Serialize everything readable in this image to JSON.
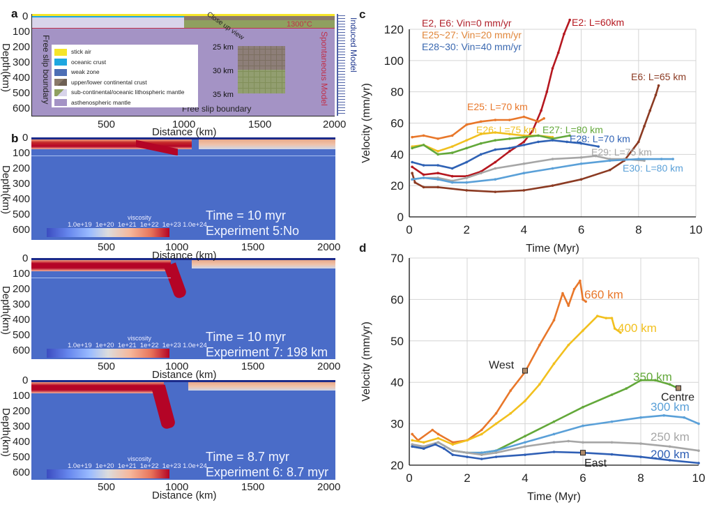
{
  "panel_a": {
    "label": "a",
    "y_ticks": [
      "0",
      "100",
      "200",
      "300",
      "400",
      "500",
      "600"
    ],
    "x_ticks": [
      "500",
      "1000",
      "1500",
      "2000"
    ],
    "ylabel": "Depth(km)",
    "xlabel": "Distance (km)",
    "left_boundary": "Free slip boundary",
    "bottom_boundary": "Free slip boundary",
    "isotherm": "1300°C",
    "spontaneous": "Spontaneous Model",
    "induced": "Induced Model",
    "closeup": "Close up view",
    "closeup_depths": [
      "25 km",
      "30 km",
      "35 km"
    ],
    "legend": [
      {
        "label": "stick air",
        "color": "#f5e52a"
      },
      {
        "label": "oceanic crust",
        "color": "#1ea7e0"
      },
      {
        "label": "weak zone",
        "color": "#4d6fb5"
      },
      {
        "label": "upper/lower continental crust",
        "color": "#8a7a6a"
      },
      {
        "label": "sub-continental/oceanic lithospheric mantle",
        "color": "#8fa060"
      },
      {
        "label": "asthenospheric mantle",
        "color": "#a493c5"
      }
    ]
  },
  "panel_b": {
    "label": "b",
    "ylabel": "Depth(km)",
    "xlabel": "Distance (km)",
    "y_ticks": [
      "0",
      "100",
      "200",
      "300",
      "400",
      "500",
      "600"
    ],
    "x_ticks": [
      "500",
      "1000",
      "1500",
      "2000"
    ],
    "colorbar_title": "viscosity",
    "colorbar_ticks": [
      "1.0e+19",
      "1e+20",
      "1e+21",
      "1e+22",
      "1e+23",
      "1.0e+24"
    ],
    "snapshots": [
      {
        "time": "Time = 10 myr",
        "experiment": "Experiment 5:No"
      },
      {
        "time": "Time = 10 myr",
        "experiment": "Experiment 7: 198 km"
      },
      {
        "time": "Time = 8.7 myr",
        "experiment": "Experiment 6: 8.7 myr"
      }
    ]
  },
  "chart_data": [
    {
      "panel": "c",
      "type": "line",
      "xlabel": "Time (Myr)",
      "ylabel": "Velocity (mm/yr)",
      "xlim": [
        0,
        10
      ],
      "ylim": [
        0,
        130
      ],
      "x_ticks": [
        0,
        2,
        4,
        6,
        8,
        10
      ],
      "y_ticks": [
        0,
        20,
        40,
        60,
        80,
        100,
        120
      ],
      "grid": true,
      "notes": [
        {
          "text": "E2, E6:   Vin=0 mm/yr",
          "color": "#b0202a"
        },
        {
          "text": "E25~27: Vin=20 mm/yr",
          "color": "#e0863a"
        },
        {
          "text": "E28~30: Vin=40 mm/yr",
          "color": "#3a68b0"
        }
      ],
      "series": [
        {
          "name": "E2: L=60km",
          "color": "#b5171f",
          "x": [
            0.1,
            0.5,
            1,
            1.5,
            2,
            2.5,
            3,
            3.5,
            4,
            4.3,
            4.6,
            4.8,
            5.0,
            5.2,
            5.4,
            5.6
          ],
          "y": [
            32,
            27,
            28,
            26,
            26,
            29,
            35,
            42,
            48,
            55,
            68,
            80,
            95,
            105,
            117,
            126
          ]
        },
        {
          "name": "E6: L=65 km",
          "color": "#8b3a22",
          "x": [
            0.1,
            0.2,
            0.5,
            1,
            2,
            3,
            4,
            5,
            6,
            7,
            7.5,
            8,
            8.2,
            8.4,
            8.6,
            8.7
          ],
          "y": [
            28,
            22,
            19,
            19,
            17,
            16,
            17,
            20,
            24,
            30,
            36,
            48,
            58,
            68,
            78,
            84
          ]
        },
        {
          "name": "E25: L=70 km",
          "color": "#e8772a",
          "x": [
            0.1,
            0.5,
            1,
            1.5,
            2,
            2.5,
            3,
            3.5,
            4,
            4.5,
            4.7
          ],
          "y": [
            51,
            52,
            50,
            52,
            59,
            61,
            62,
            62,
            64,
            61,
            63
          ]
        },
        {
          "name": "E26: L=75 km",
          "color": "#f0c020",
          "x": [
            0.1,
            0.5,
            1,
            1.5,
            2,
            2.5,
            3,
            3.5,
            4,
            4.5,
            5
          ],
          "y": [
            45,
            46,
            42,
            45,
            49,
            53,
            54,
            53,
            52,
            52,
            51
          ]
        },
        {
          "name": "E27: L=80 km",
          "color": "#63a83a",
          "x": [
            0.1,
            0.5,
            1,
            1.5,
            2,
            2.5,
            3,
            3.5,
            4,
            4.5,
            5,
            5.6
          ],
          "y": [
            44,
            46,
            40,
            41,
            44,
            47,
            49,
            50,
            51,
            52,
            50,
            52
          ]
        },
        {
          "name": "E28: L=70 km",
          "color": "#2f62b5",
          "x": [
            0.1,
            0.5,
            1,
            1.5,
            2,
            2.5,
            3,
            3.5,
            4,
            4.5,
            5,
            5.5,
            6,
            6.6
          ],
          "y": [
            35,
            33,
            33,
            31,
            35,
            40,
            43,
            44,
            46,
            48,
            49,
            48,
            47,
            45
          ]
        },
        {
          "name": "E29: L=75 km",
          "color": "#a6a6a6",
          "x": [
            0.1,
            0.5,
            1,
            1.5,
            2,
            2.5,
            3,
            4,
            5,
            6,
            6.5,
            7,
            7.5,
            8.2
          ],
          "y": [
            24,
            25,
            25,
            23,
            25,
            28,
            31,
            34,
            37,
            38,
            39,
            37,
            37,
            36
          ]
        },
        {
          "name": "E30: L=80 km",
          "color": "#5aa0d8",
          "x": [
            0.1,
            0.5,
            1,
            1.5,
            2,
            3,
            4,
            5,
            6,
            7,
            8,
            8.8,
            9.2
          ],
          "y": [
            24,
            25,
            24,
            22,
            22,
            24,
            28,
            31,
            34,
            36,
            37,
            37,
            37
          ]
        }
      ]
    },
    {
      "panel": "d",
      "type": "line",
      "xlabel": "Time (Myr)",
      "ylabel": "Velocity (mm/yr)",
      "xlim": [
        0,
        10
      ],
      "ylim": [
        20,
        70
      ],
      "x_ticks": [
        0,
        2,
        4,
        6,
        8,
        10
      ],
      "y_ticks": [
        20,
        30,
        40,
        50,
        60,
        70
      ],
      "grid": true,
      "series": [
        {
          "name": "660 km",
          "color": "#e8772a",
          "x": [
            0.1,
            0.3,
            0.8,
            1.0,
            1.5,
            2,
            2.5,
            3,
            3.5,
            4,
            4.5,
            5,
            5.3,
            5.5,
            5.7,
            5.9,
            6,
            6.1
          ],
          "y": [
            27.5,
            26,
            28.5,
            27.5,
            25.5,
            26,
            28.5,
            32.5,
            38,
            42.5,
            49,
            55,
            61.5,
            58.5,
            62.5,
            64.5,
            60,
            59.5
          ]
        },
        {
          "name": "400 km",
          "color": "#f2c01e",
          "x": [
            0.1,
            0.5,
            1,
            1.5,
            2,
            2.5,
            3,
            3.5,
            4,
            4.5,
            5,
            5.5,
            6,
            6.5,
            6.8,
            7,
            7.1,
            7.3
          ],
          "y": [
            26,
            25.5,
            26.5,
            25,
            26,
            27.5,
            30,
            32.5,
            35.5,
            39.5,
            44.5,
            49,
            52.5,
            56,
            55.5,
            55.5,
            53,
            52
          ]
        },
        {
          "name": "350 km",
          "color": "#63a83a",
          "x": [
            0.1,
            0.5,
            1,
            1.5,
            2,
            2.5,
            3,
            4,
            5,
            6,
            7,
            7.5,
            8,
            8.5,
            9,
            9.3
          ],
          "y": [
            24.5,
            24,
            25.5,
            23.5,
            23,
            23,
            23.5,
            27,
            30.5,
            34,
            37,
            38.5,
            40.5,
            40.5,
            39.5,
            38.5
          ]
        },
        {
          "name": "300 km",
          "color": "#5aa0d8",
          "x": [
            0.1,
            0.5,
            1,
            1.5,
            2,
            2.5,
            3,
            4,
            5,
            6,
            7,
            8,
            8.8,
            9.5,
            10
          ],
          "y": [
            25,
            24.5,
            25.5,
            23.5,
            23,
            23,
            23.5,
            25.5,
            27.5,
            29.5,
            30.5,
            31.5,
            32,
            31.5,
            30
          ]
        },
        {
          "name": "250 km",
          "color": "#a6a6a6",
          "x": [
            0.1,
            0.5,
            1,
            1.5,
            2,
            2.5,
            3,
            4,
            5,
            5.5,
            6,
            7,
            8,
            9,
            10
          ],
          "y": [
            25,
            24.5,
            25.5,
            23.5,
            23,
            22.5,
            23,
            24.5,
            25.5,
            25.8,
            25.5,
            25.5,
            25.2,
            24.5,
            23.5
          ]
        },
        {
          "name": "200 km",
          "color": "#2f5fb5",
          "x": [
            0.1,
            0.5,
            0.9,
            1.2,
            1.5,
            2,
            2.5,
            3,
            4,
            5,
            6,
            7,
            8,
            9,
            10
          ],
          "y": [
            24.5,
            24,
            25,
            24,
            22.5,
            22,
            21.5,
            22,
            22.5,
            23.2,
            23,
            22.6,
            22,
            21.2,
            20.5
          ]
        }
      ],
      "markers": [
        {
          "label": "West",
          "x": 4.0,
          "y": 42.8
        },
        {
          "label": "Centre",
          "x": 9.3,
          "y": 38.6
        },
        {
          "label": "East",
          "x": 6.0,
          "y": 23.0
        }
      ]
    }
  ]
}
